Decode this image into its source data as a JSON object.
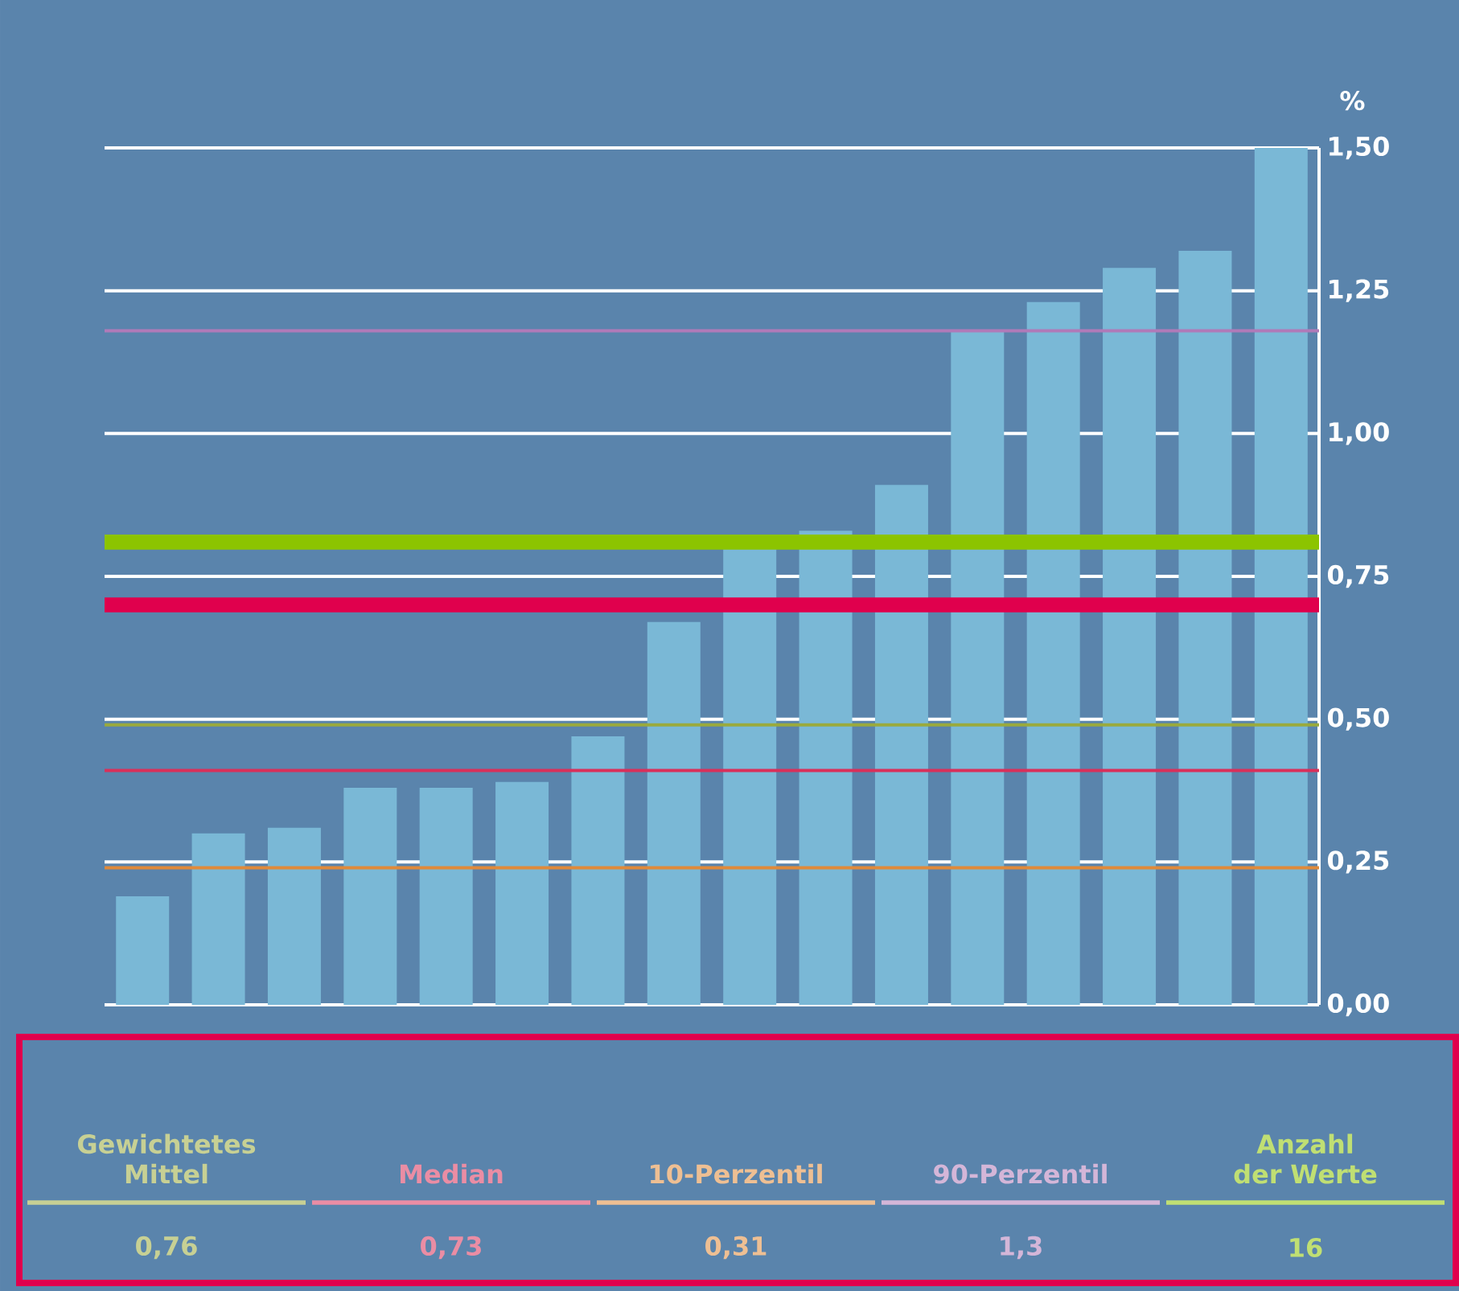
{
  "chart_data": {
    "type": "bar",
    "ylabel": "%",
    "categories": [
      null,
      null,
      null,
      null,
      null,
      null,
      null,
      null,
      null,
      null,
      null,
      null,
      null,
      null,
      null,
      null
    ],
    "values": [
      0.19,
      0.3,
      0.31,
      0.38,
      0.38,
      0.39,
      0.47,
      0.67,
      0.8,
      0.83,
      0.91,
      1.18,
      1.23,
      1.29,
      1.32,
      1.5
    ],
    "color": "#7ab8d6",
    "ylim": [
      0,
      1.5
    ],
    "yticks": [
      {
        "value": 0,
        "label": "0,00"
      },
      {
        "value": 0.25,
        "label": "0,25"
      },
      {
        "value": 0.5,
        "label": "0,50"
      },
      {
        "value": 0.75,
        "label": "0,75"
      },
      {
        "value": 1.0,
        "label": "1,00"
      },
      {
        "value": 1.25,
        "label": "1,25"
      },
      {
        "value": 1.5,
        "label": "1,50"
      }
    ],
    "grid": "y",
    "tick_labels": "y",
    "ref_lines": [
      {
        "axis": "y",
        "value": 0.49,
        "color": "#9aaa3c"
      },
      {
        "axis": "y",
        "value": 0.41,
        "color": "#d9305a"
      },
      {
        "axis": "y",
        "value": 0.24,
        "color": "#e08a3a"
      },
      {
        "axis": "y",
        "value": 1.18,
        "color": "#b07ab8"
      },
      {
        "axis": "y",
        "value": 0.81,
        "color": "#8cc400"
      },
      {
        "axis": "y",
        "value": 0.7,
        "color": "#e0004d"
      }
    ],
    "annotations": [
      "Gewichtetes Mittel",
      "Median",
      "10-Perzentil",
      "90-Perzentil",
      "Anzahl der Werte",
      "0,76",
      "0,73",
      "0,31",
      "1,3",
      "16"
    ]
  }
}
